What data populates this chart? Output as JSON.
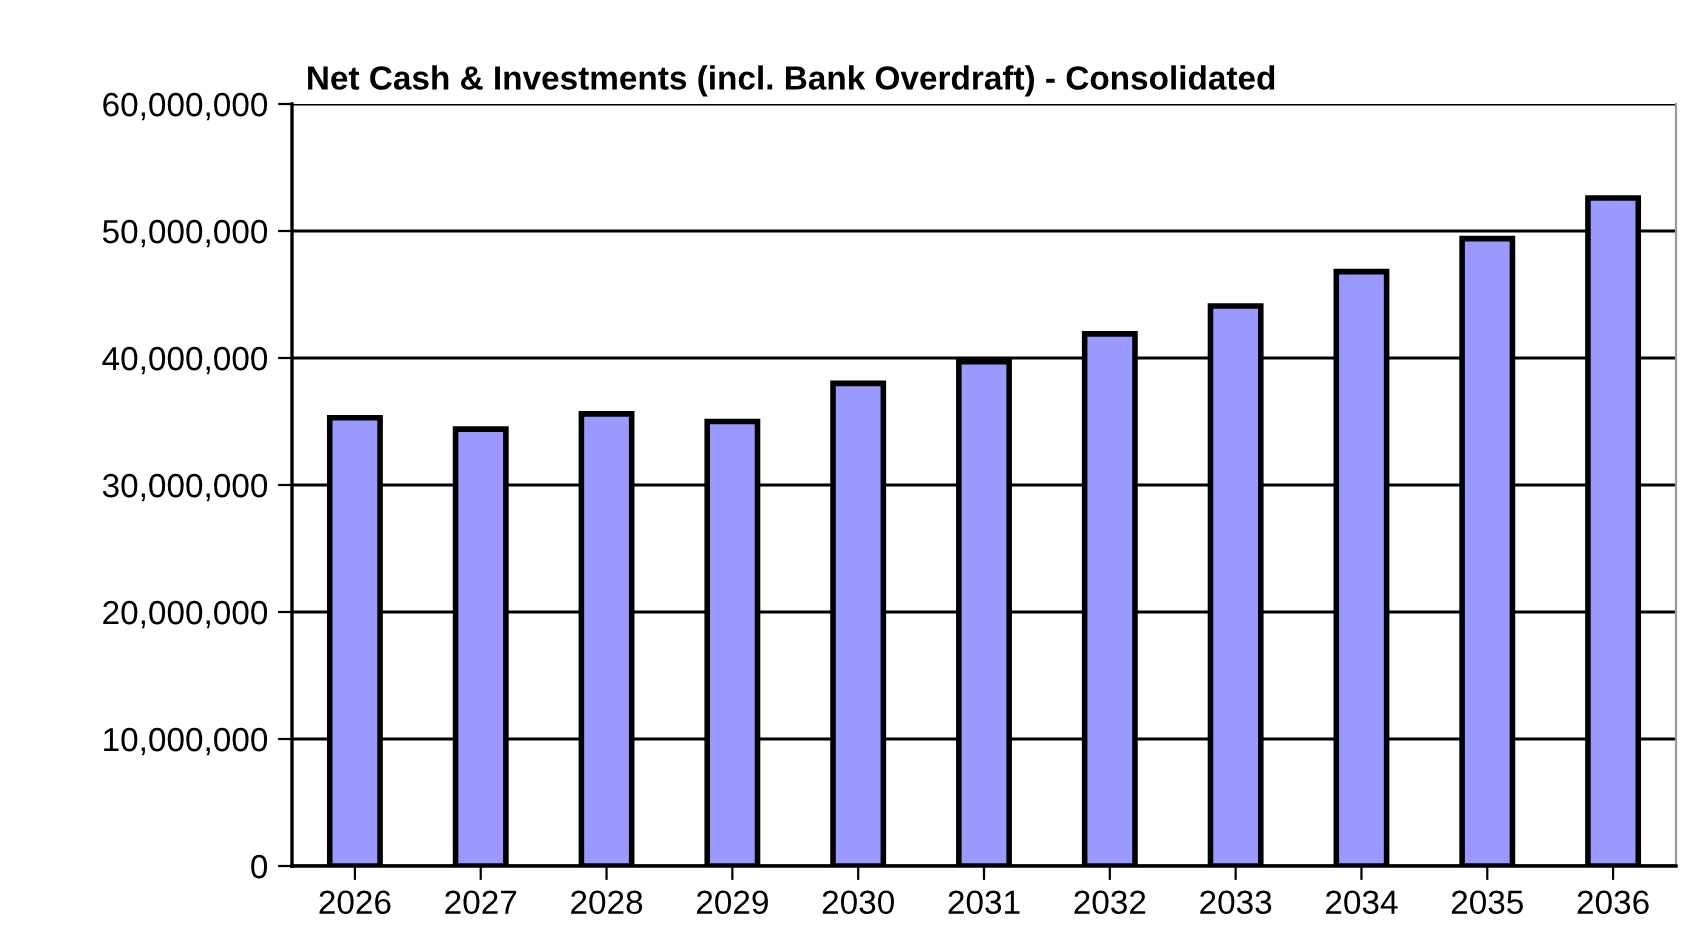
{
  "chart_data": {
    "type": "bar",
    "title": "Net Cash & Investments (incl. Bank Overdraft) - Consolidated",
    "categories": [
      "2026",
      "2027",
      "2028",
      "2029",
      "2030",
      "2031",
      "2032",
      "2033",
      "2034",
      "2035",
      "2036"
    ],
    "values": [
      35300000,
      34400000,
      35600000,
      35000000,
      38000000,
      39700000,
      41900000,
      44100000,
      46800000,
      49400000,
      52600000
    ],
    "color": "#9999ff",
    "ylim": [
      0,
      60000000
    ],
    "yticks": [
      {
        "value": 0,
        "label": "0"
      },
      {
        "value": 10000000,
        "label": "10,000,000"
      },
      {
        "value": 20000000,
        "label": "20,000,000"
      },
      {
        "value": 30000000,
        "label": "30,000,000"
      },
      {
        "value": 40000000,
        "label": "40,000,000"
      },
      {
        "value": 50000000,
        "label": "50,000,000"
      },
      {
        "value": 60000000,
        "label": "60,000,000"
      }
    ],
    "grid": "y"
  }
}
